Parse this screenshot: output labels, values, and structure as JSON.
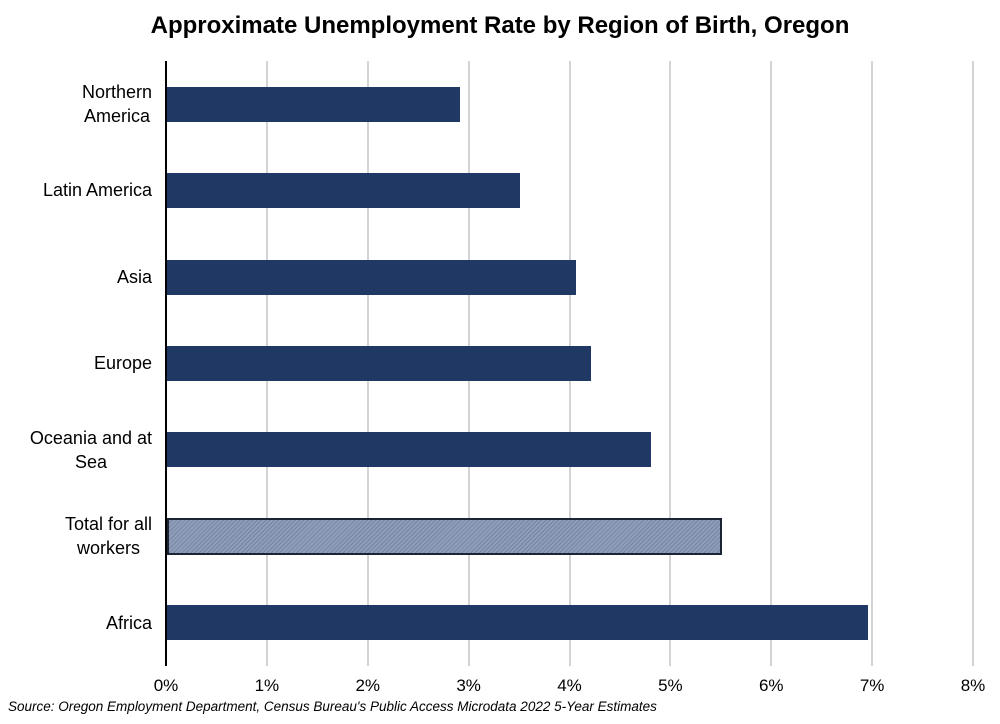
{
  "chart_data": {
    "type": "bar",
    "orientation": "horizontal",
    "title": "Approximate Unemployment Rate by Region of Birth, Oregon",
    "categories": [
      "Northern America",
      "Latin America",
      "Asia",
      "Europe",
      "Oceania and at Sea",
      "Total for all workers",
      "Africa"
    ],
    "display_labels": [
      "Northern\nAmerica",
      "Latin America",
      "Asia",
      "Europe",
      "Oceania and at\nSea",
      "Total for all\nworkers",
      "Africa"
    ],
    "values": [
      2.9,
      3.5,
      4.05,
      4.2,
      4.8,
      5.5,
      6.95
    ],
    "unit": "%",
    "xlim": [
      0,
      8
    ],
    "x_tick_labels": [
      "0%",
      "1%",
      "2%",
      "3%",
      "4%",
      "5%",
      "6%",
      "7%",
      "8%"
    ],
    "grid": true,
    "legend": false,
    "highlight_index": 5,
    "colors": {
      "bar": "#1F3864",
      "highlight_fill": "#8F9EBB",
      "highlight_hatch": "#76869F",
      "highlight_border": "#1A2433",
      "gridline": "#D3D3D3",
      "axis": "#000000"
    },
    "source": "Source: Oregon Employment Department, Census Bureau's Public Access Microdata 2022 5-Year Estimates"
  }
}
